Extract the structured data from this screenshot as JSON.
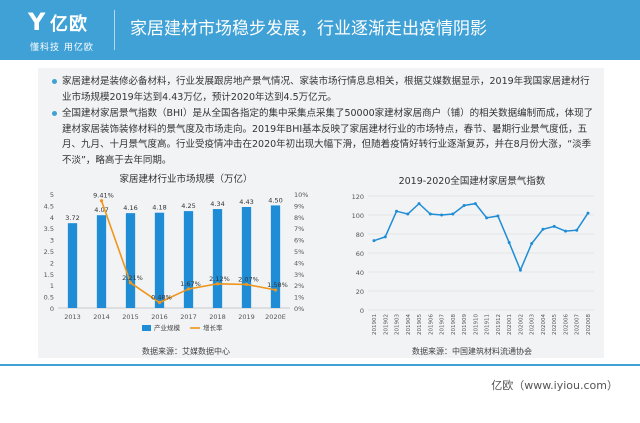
{
  "header": {
    "logo_brand": "亿欧",
    "logo_slogan": "懂科技 用亿欧",
    "title": "家居建材市场稳步发展，行业逐渐走出疫情阴影"
  },
  "bullets": [
    "家居建材是装修必备材料，行业发展跟房地产景气情况、家装市场行情息息相关，根据艾媒数据显示，2019年我国家居建材行业市场规模2019年达到4.43万亿，预计2020年达到4.5万亿元。",
    "全国建材家居景气指数（BHI）是从全国各指定的集中采集点采集了50000家建材家居商户（铺）的相关数据编制而成，体现了建材家居装饰装修材料的景气度及市场走向。2019年BHI基本反映了家居建材行业的市场特点，春节、暑期行业景气度低，五月、九月、十月景气度高。行业受疫情冲击在2020年初出现大幅下滑，但随着疫情好转行业逐渐复苏，并在8月份大涨，“淡季不淡”，略高于去年同期。"
  ],
  "chart_data": [
    {
      "type": "bar",
      "title": "家居建材行业市场规模（万亿）",
      "categories": [
        "2013",
        "2014",
        "2015",
        "2016",
        "2017",
        "2018",
        "2019",
        "2020E"
      ],
      "series": [
        {
          "name": "产业规模",
          "type": "bar",
          "axis": "left",
          "values": [
            3.72,
            4.07,
            4.16,
            4.18,
            4.25,
            4.34,
            4.43,
            4.5
          ],
          "labels": [
            "3.72",
            "4.07",
            "4.16",
            "4.18",
            "4.25",
            "4.34",
            "4.43",
            "4.50"
          ]
        },
        {
          "name": "增长率",
          "type": "line",
          "axis": "right",
          "values": [
            null,
            9.41,
            2.21,
            0.48,
            1.67,
            2.12,
            2.07,
            1.58
          ],
          "labels": [
            "",
            "9.41%",
            "2.21%",
            "0.48%",
            "1.67%",
            "2.12%",
            "2.07%",
            "1.58%"
          ]
        }
      ],
      "ylim": [
        0,
        5
      ],
      "yticks": [
        "0",
        "0.5",
        "1",
        "1.5",
        "2",
        "2.5",
        "3",
        "3.5",
        "4",
        "4.5",
        "5"
      ],
      "y2lim": [
        0,
        10
      ],
      "y2ticks": [
        "0%",
        "1%",
        "2%",
        "3%",
        "4%",
        "5%",
        "6%",
        "7%",
        "8%",
        "9%",
        "10%"
      ],
      "colors": {
        "bar": "#1f8dd6",
        "line": "#f0961b"
      },
      "source": "数据来源：艾媒数据中心",
      "grid": false,
      "legend": "bottom"
    },
    {
      "type": "line",
      "title": "2019-2020全国建材家居景气指数",
      "categories": [
        "201901",
        "201902",
        "201903",
        "201904",
        "201905",
        "201906",
        "201907",
        "201908",
        "201909",
        "201910",
        "201911",
        "201912",
        "202001",
        "202002",
        "202003",
        "202004",
        "202005",
        "202006",
        "202007",
        "202008"
      ],
      "series": [
        {
          "name": "",
          "values": [
            73,
            77,
            104,
            101,
            112,
            101,
            100,
            101,
            110,
            112,
            97,
            99,
            71,
            42,
            70,
            85,
            88,
            83,
            84,
            102
          ]
        }
      ],
      "ylim": [
        0,
        120
      ],
      "yticks": [
        "0",
        "20",
        "40",
        "60",
        "80",
        "100",
        "120"
      ],
      "colors": {
        "line": "#1f8dd6"
      },
      "source": "数据来源：中国建筑材料流通协会",
      "grid": true
    }
  ],
  "footer": {
    "text": "亿欧（www.iyiou.com）"
  }
}
